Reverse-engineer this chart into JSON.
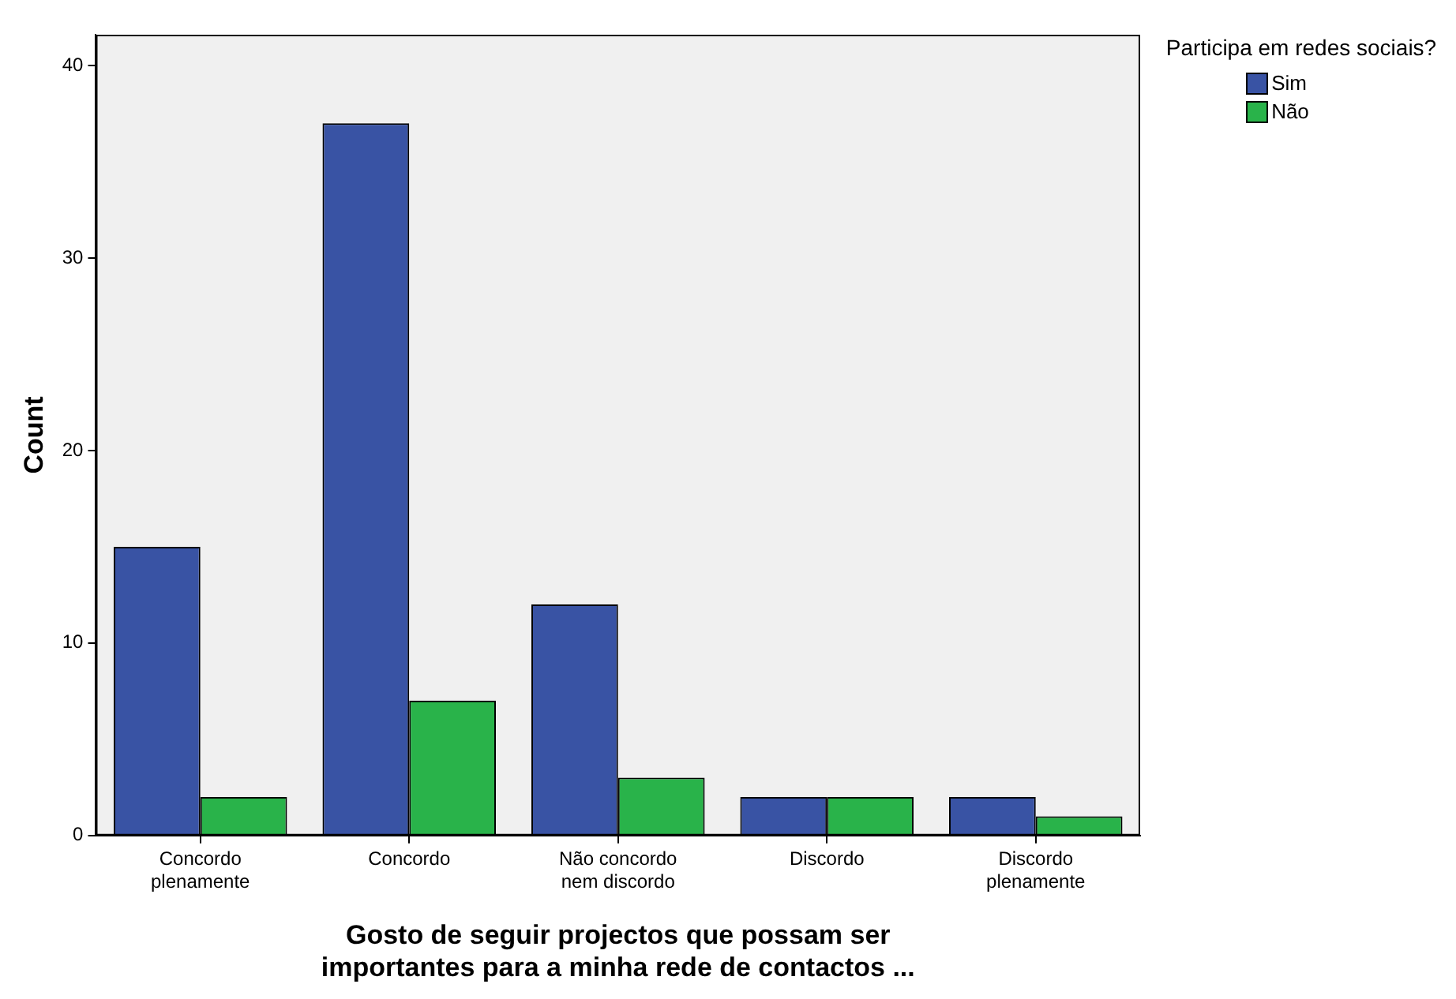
{
  "chart_data": {
    "type": "bar",
    "xlabel": "Gosto de seguir projectos que possam ser importantes para a minha rede de contactos ...",
    "ylabel": "Count",
    "legend_title": "Participa em redes sociais?",
    "categories": [
      "Concordo plenamente",
      "Concordo",
      "Não concordo nem discordo",
      "Discordo",
      "Discordo plenamente"
    ],
    "series": [
      {
        "name": "Sim",
        "color": "#3953a4",
        "values": [
          15,
          37,
          12,
          2,
          2
        ]
      },
      {
        "name": "Não",
        "color": "#29b34a",
        "values": [
          2,
          7,
          3,
          2,
          1
        ]
      }
    ],
    "ylim": [
      0,
      41.6
    ],
    "yticks": [
      0,
      10,
      20,
      30,
      40
    ],
    "grid": false,
    "legend": "top right"
  }
}
